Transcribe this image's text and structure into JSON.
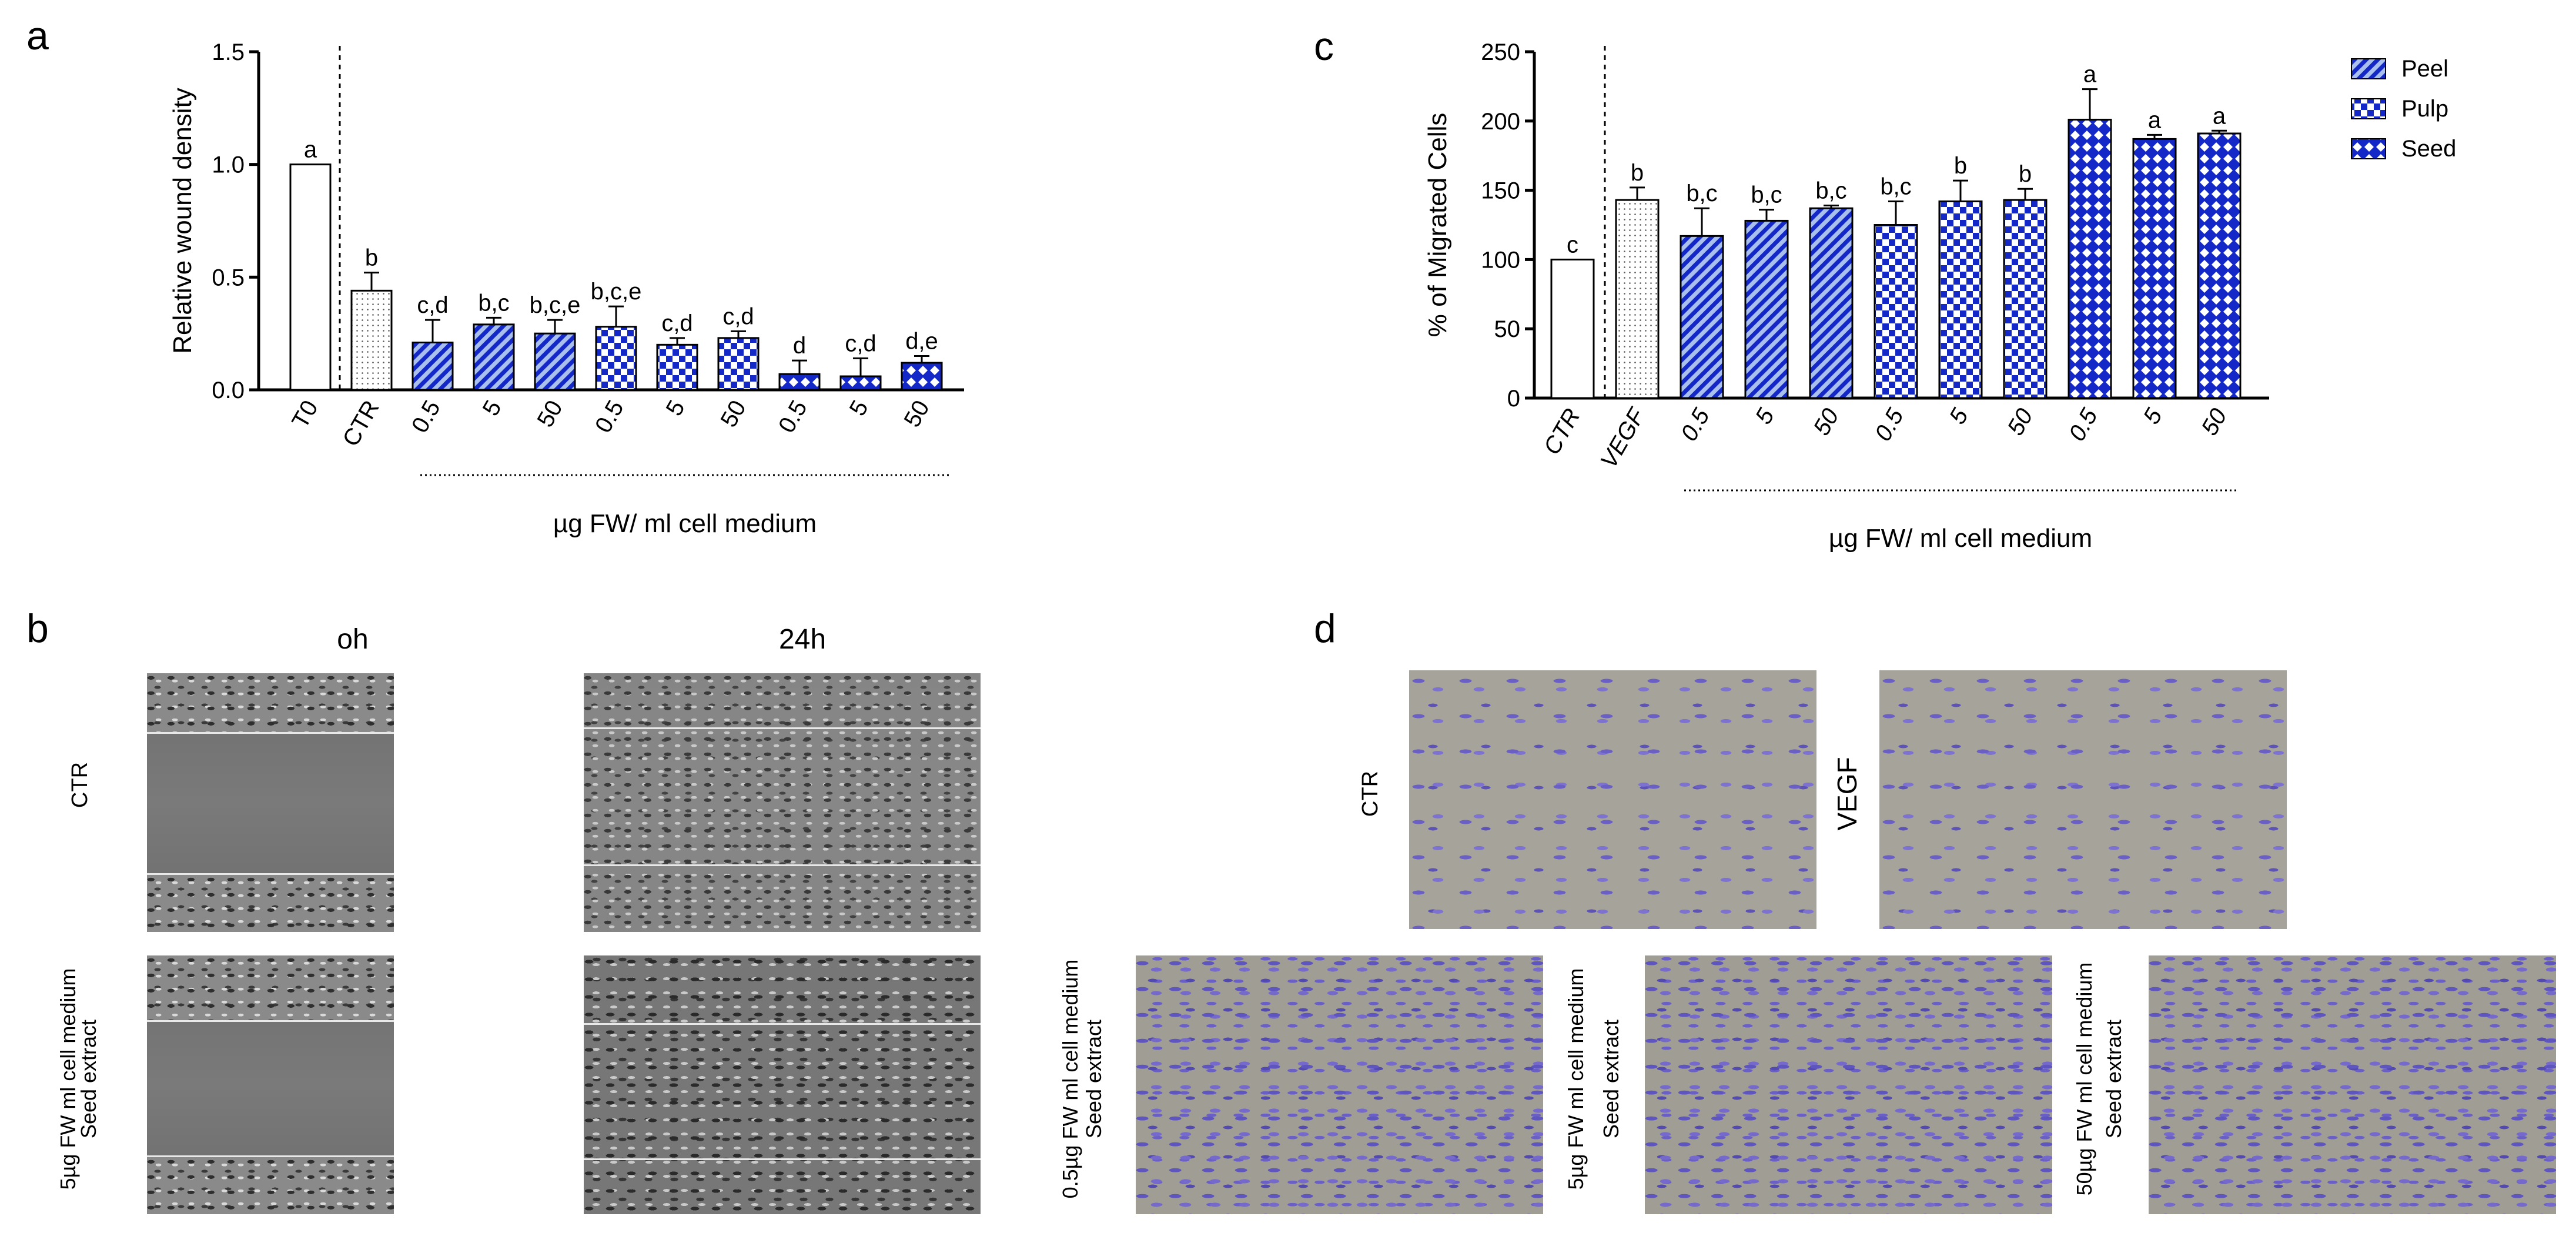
{
  "panel_letters": {
    "a": "a",
    "b": "b",
    "c": "c",
    "d": "d"
  },
  "chart_data": [
    {
      "panel": "a",
      "type": "bar",
      "ylabel": "Relative wound density",
      "xlabel": "µg FW/ ml cell medium",
      "ylim": [
        0,
        1.5
      ],
      "yticks": [
        "0.0",
        "0.5",
        "1.0",
        "1.5"
      ],
      "ytick_values": [
        0,
        0.5,
        1.0,
        1.5
      ],
      "categories": [
        "T0",
        "CTR",
        "0.5",
        "5",
        "50",
        "0.5",
        "5",
        "50",
        "0.5",
        "5",
        "50"
      ],
      "values": [
        1.0,
        0.44,
        0.21,
        0.29,
        0.25,
        0.28,
        0.2,
        0.23,
        0.07,
        0.06,
        0.12
      ],
      "errors": [
        0,
        0.08,
        0.1,
        0.03,
        0.06,
        0.09,
        0.03,
        0.03,
        0.06,
        0.08,
        0.03
      ],
      "letters": [
        "a",
        "b",
        "c,d",
        "b,c",
        "b,c,e",
        "b,c,e",
        "c,d",
        "c,d",
        "d",
        "c,d",
        "d,e"
      ],
      "fills": [
        "white",
        "dots",
        "peel",
        "peel",
        "peel",
        "pulp",
        "pulp",
        "pulp",
        "seed",
        "seed",
        "seed"
      ]
    },
    {
      "panel": "c",
      "type": "bar",
      "ylabel": "% of Migrated Cells",
      "xlabel": "µg FW/ ml cell medium",
      "ylim": [
        0,
        250
      ],
      "yticks": [
        "0",
        "50",
        "100",
        "150",
        "200",
        "250"
      ],
      "ytick_values": [
        0,
        50,
        100,
        150,
        200,
        250
      ],
      "categories": [
        "CTR",
        "VEGF",
        "0.5",
        "5",
        "50",
        "0.5",
        "5",
        "50",
        "0.5",
        "5",
        "50"
      ],
      "values": [
        100,
        143,
        117,
        128,
        137,
        125,
        142,
        143,
        201,
        187,
        191
      ],
      "errors": [
        0,
        9,
        20,
        8,
        2,
        17,
        15,
        8,
        22,
        3,
        2
      ],
      "letters": [
        "c",
        "b",
        "b,c",
        "b,c",
        "b,c",
        "b,c",
        "b",
        "b",
        "a",
        "a",
        "a"
      ],
      "fills": [
        "white",
        "dots",
        "peel",
        "peel",
        "peel",
        "pulp",
        "pulp",
        "pulp",
        "seed",
        "seed",
        "seed"
      ],
      "legend": [
        {
          "name": "Peel",
          "fill": "peel"
        },
        {
          "name": "Pulp",
          "fill": "pulp"
        },
        {
          "name": "Seed",
          "fill": "seed"
        }
      ],
      "legend_position": "top-right"
    }
  ],
  "panel_b": {
    "col_headers": [
      "oh",
      "24h"
    ],
    "row_labels": [
      "CTR",
      "5µg FW ml cell medium",
      "Seed extract"
    ]
  },
  "panel_d": {
    "ctr_label": "CTR",
    "vegf_label": "VEGF",
    "label_05_line1": "0.5µg FW ml cell medium",
    "label_5_line1": "5µg FW ml cell medium",
    "label_50_line1": "50µg FW ml cell medium",
    "seed_extract": "Seed extract"
  },
  "colors": {
    "bar_blue": "#1428c8",
    "bar_light": "#a9c0ee",
    "axis": "#000000"
  }
}
